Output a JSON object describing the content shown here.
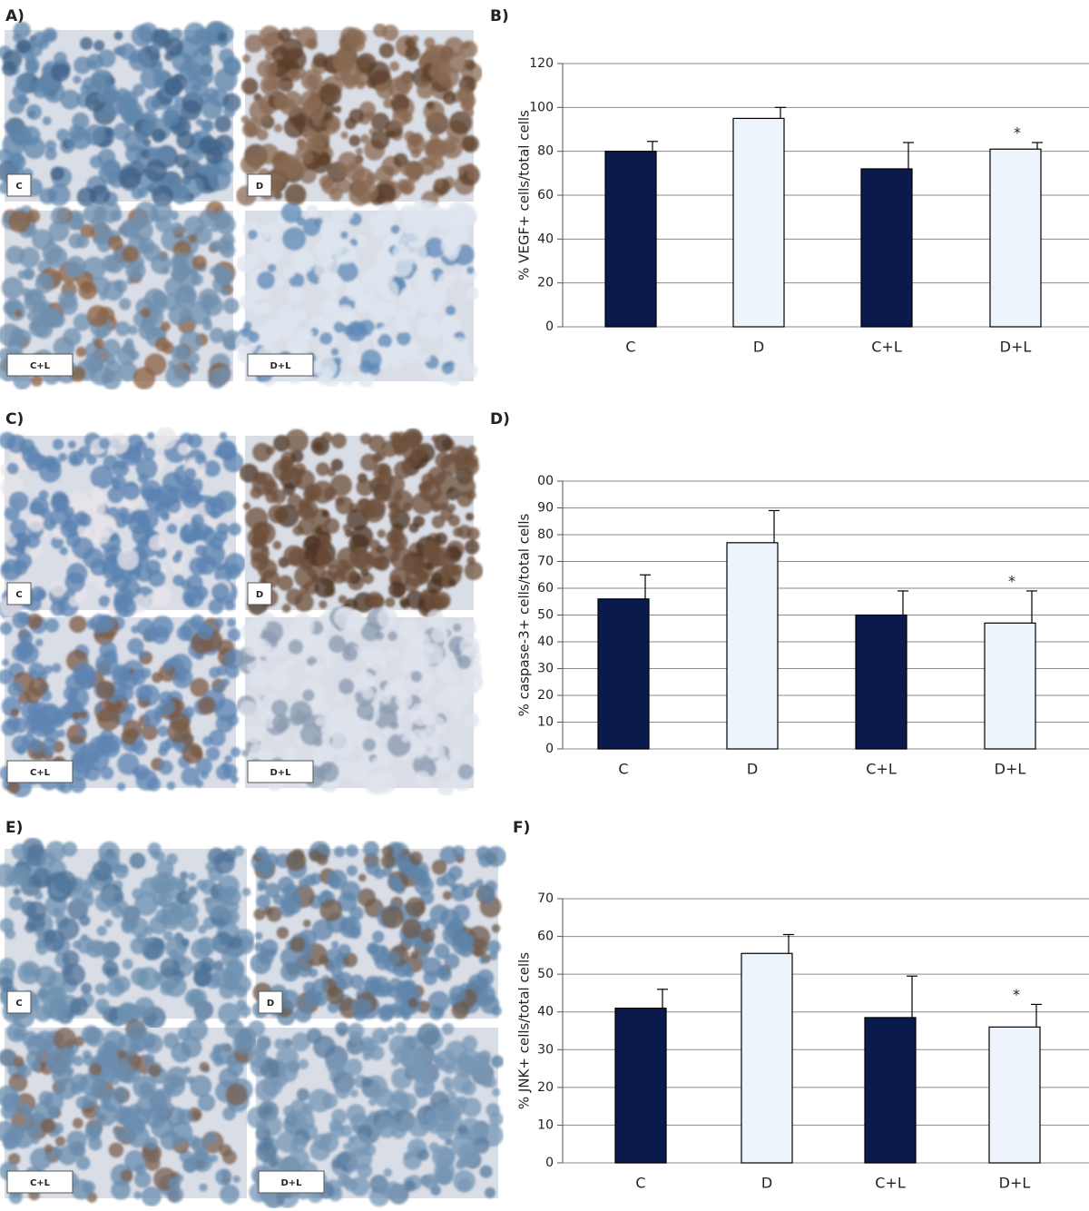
{
  "chart_data": [
    {
      "type": "bar",
      "label": "B)",
      "ylabel": "% VEGF+ cells/total cells",
      "categories": [
        "C",
        "D",
        "C+L",
        "D+L"
      ],
      "values": [
        80,
        95,
        72,
        81
      ],
      "errors": [
        4.5,
        5,
        12,
        3
      ],
      "colors": [
        "#0b1a4d",
        "#eef4fb",
        "#0b1a4d",
        "#eef4fb"
      ],
      "annotations": [
        null,
        null,
        null,
        "*"
      ],
      "ylim": [
        0,
        120
      ],
      "yticks": [
        0,
        20,
        40,
        60,
        80,
        100,
        120
      ],
      "grid": true
    },
    {
      "type": "bar",
      "label": "D)",
      "ylabel": "% caspase-3+ cells/total cells",
      "categories": [
        "C",
        "D",
        "C+L",
        "D+L"
      ],
      "values": [
        56,
        77,
        50,
        47
      ],
      "errors": [
        9,
        12,
        9,
        12
      ],
      "colors": [
        "#0b1a4d",
        "#eef4fb",
        "#0b1a4d",
        "#eef4fb"
      ],
      "annotations": [
        null,
        null,
        null,
        "*"
      ],
      "ylim": [
        0,
        100
      ],
      "yticks": [
        0,
        10,
        20,
        30,
        40,
        50,
        60,
        70,
        80,
        90,
        {
          "value": 100,
          "label": "00"
        }
      ],
      "grid": true
    },
    {
      "type": "bar",
      "label": "F)",
      "ylabel": "% JNK+ cells/total cells",
      "categories": [
        "C",
        "D",
        "C+L",
        "D+L"
      ],
      "values": [
        41,
        55.5,
        38.5,
        36
      ],
      "errors": [
        5,
        5,
        11,
        6
      ],
      "colors": [
        "#0b1a4d",
        "#eef4fb",
        "#0b1a4d",
        "#eef4fb"
      ],
      "annotations": [
        null,
        null,
        null,
        "*"
      ],
      "ylim": [
        0,
        70
      ],
      "yticks": [
        0,
        10,
        20,
        30,
        40,
        50,
        60,
        70
      ],
      "grid": true
    }
  ],
  "images": [
    {
      "label": "A)",
      "tiles": [
        "C",
        "D",
        "C+L",
        "D+L"
      ]
    },
    {
      "label": "C)",
      "tiles": [
        "C",
        "D",
        "C+L",
        "D+L"
      ]
    },
    {
      "label": "E)",
      "tiles": [
        "C",
        "D",
        "C+L",
        "D+L"
      ]
    }
  ]
}
